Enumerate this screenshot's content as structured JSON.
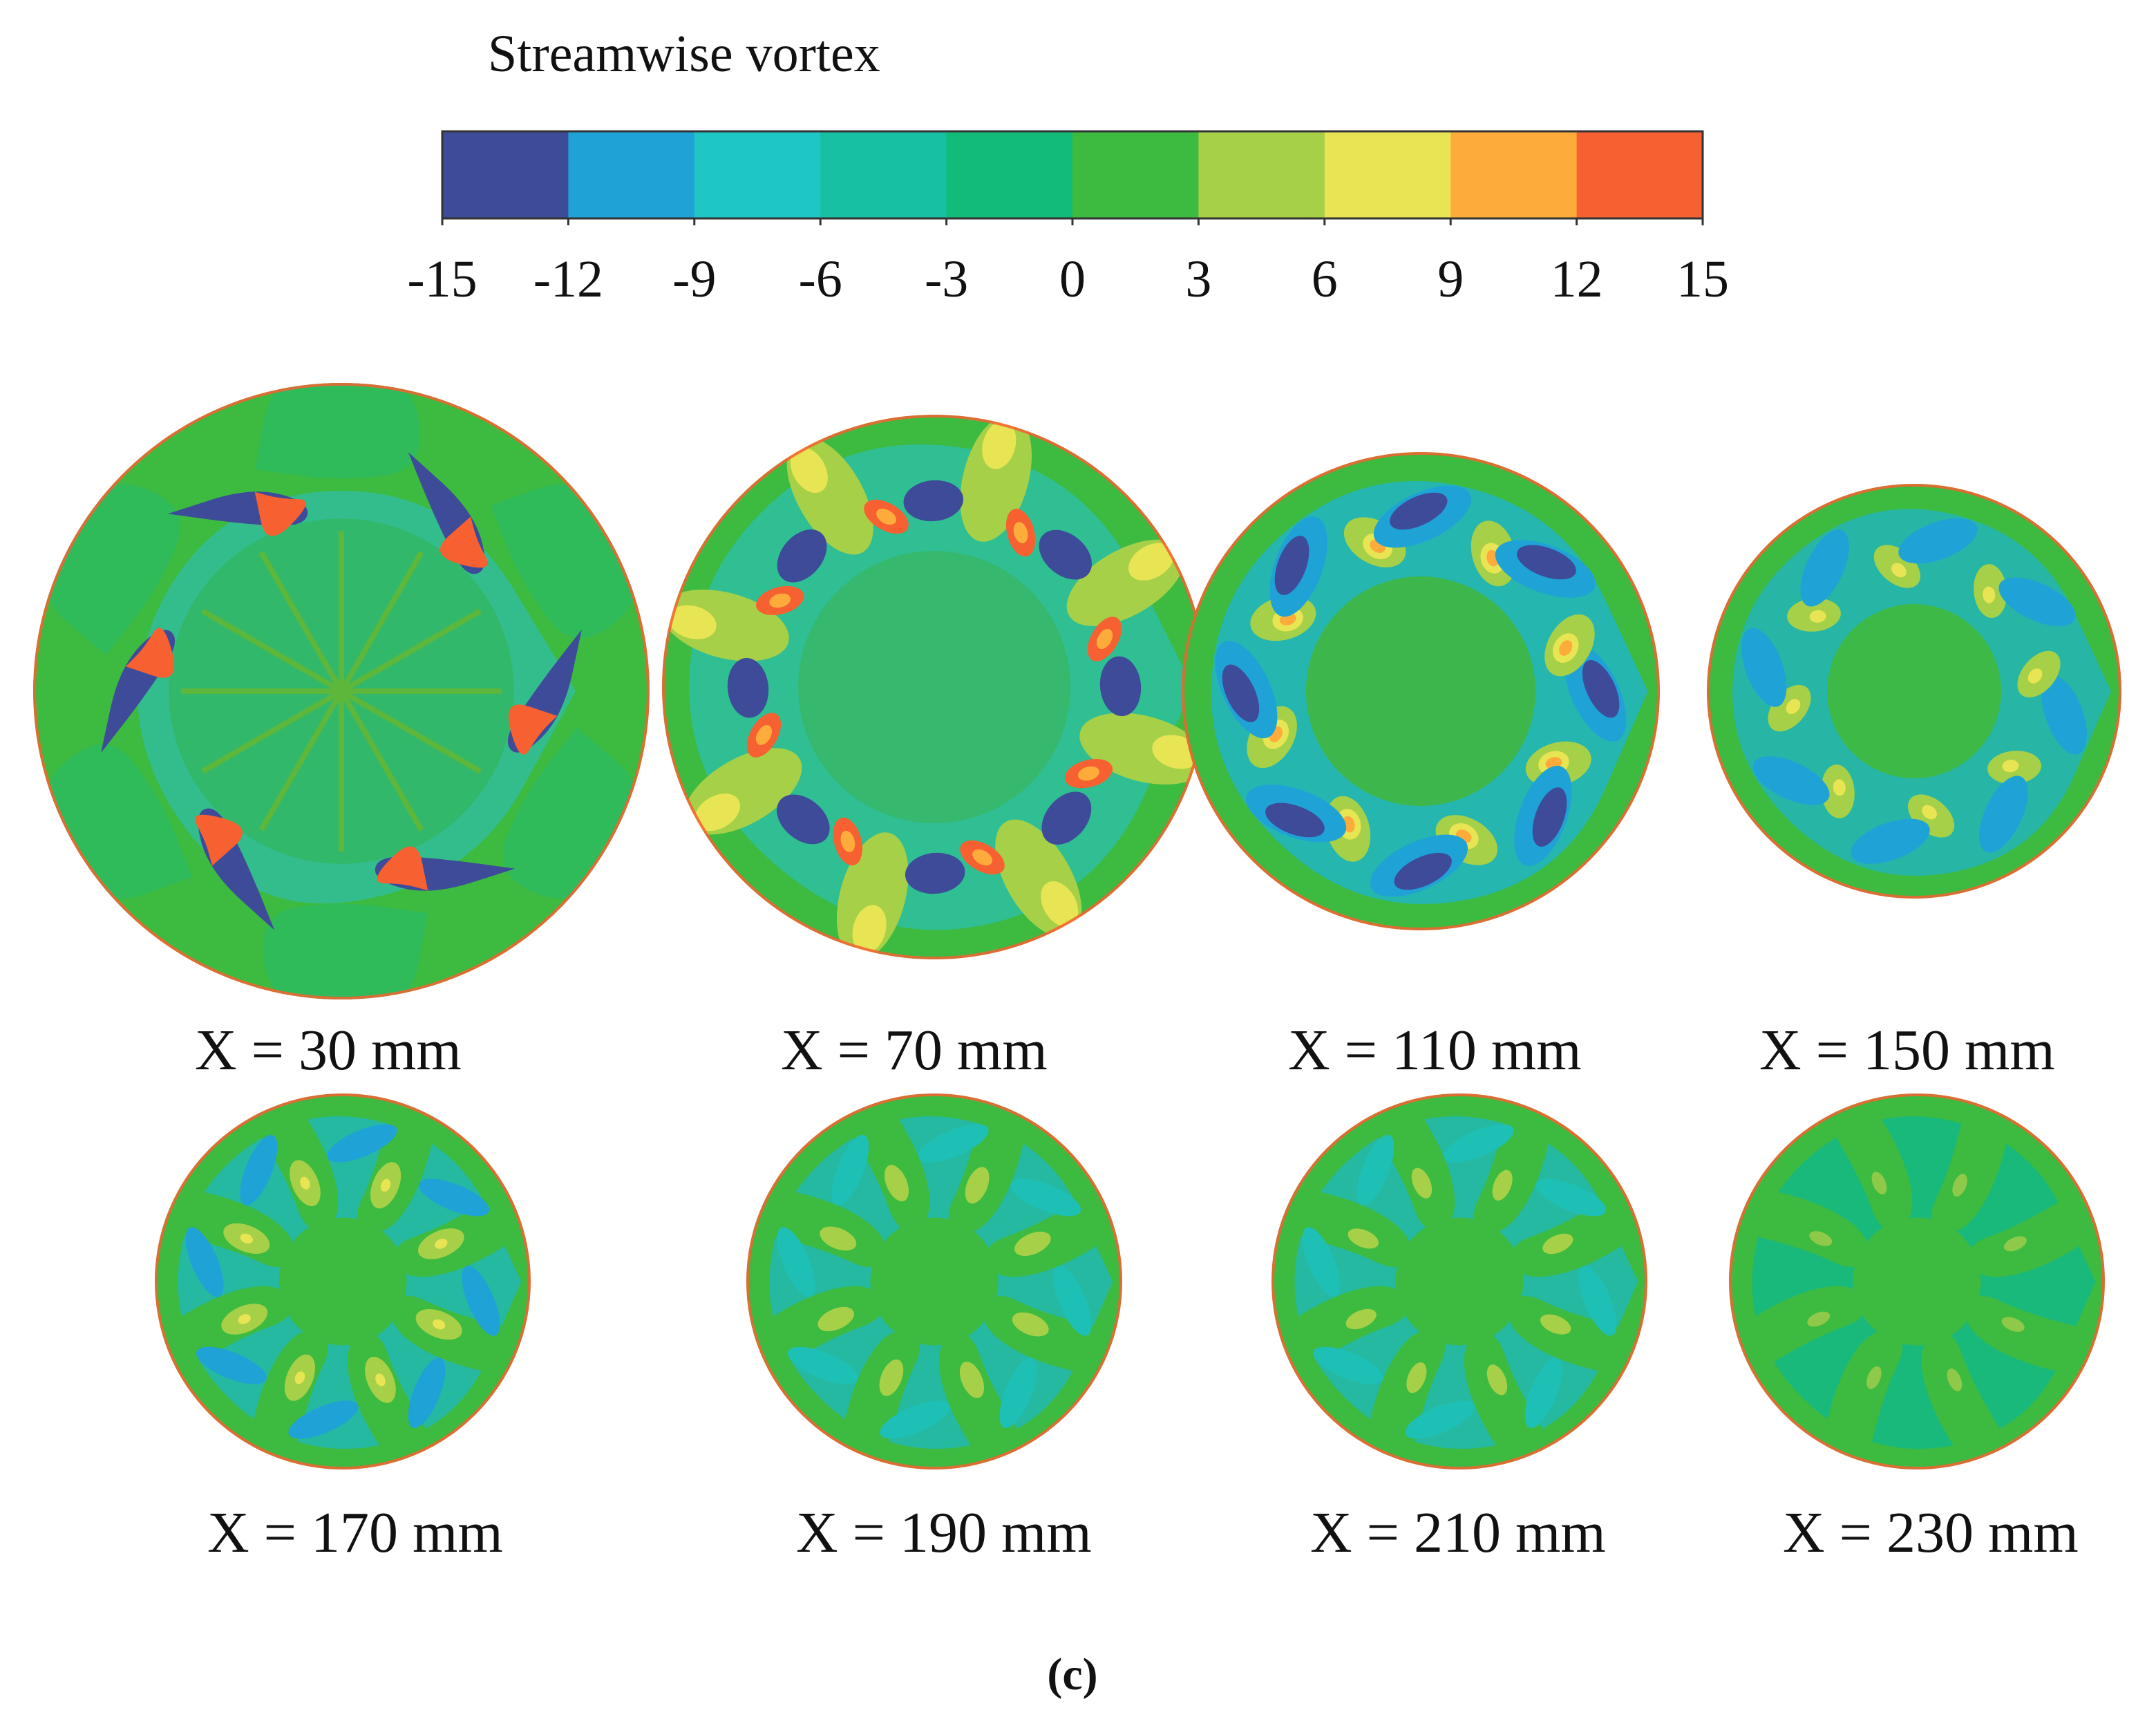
{
  "colorbar": {
    "title": "Streamwise vortex",
    "ticks": [
      "-15",
      "-12",
      "-9",
      "-6",
      "-3",
      "0",
      "3",
      "6",
      "9",
      "12",
      "15"
    ],
    "colors": [
      "#3d4b99",
      "#1fa2d6",
      "#1ec6c6",
      "#17c0a2",
      "#13bb78",
      "#3dba40",
      "#a6d048",
      "#e7e553",
      "#fdac3c",
      "#f76030"
    ]
  },
  "sections": [
    {
      "label": "X = 30 mm",
      "pattern": "x30"
    },
    {
      "label": "X = 70 mm",
      "pattern": "x70"
    },
    {
      "label": "X = 110 mm",
      "pattern": "x110"
    },
    {
      "label": "X = 150 mm",
      "pattern": "x150"
    },
    {
      "label": "X = 170 mm",
      "pattern": "x170"
    },
    {
      "label": "X = 190 mm",
      "pattern": "x190"
    },
    {
      "label": "X = 210 mm",
      "pattern": "x210"
    },
    {
      "label": "X = 230 mm",
      "pattern": "x230"
    }
  ],
  "caption": "(c)"
}
